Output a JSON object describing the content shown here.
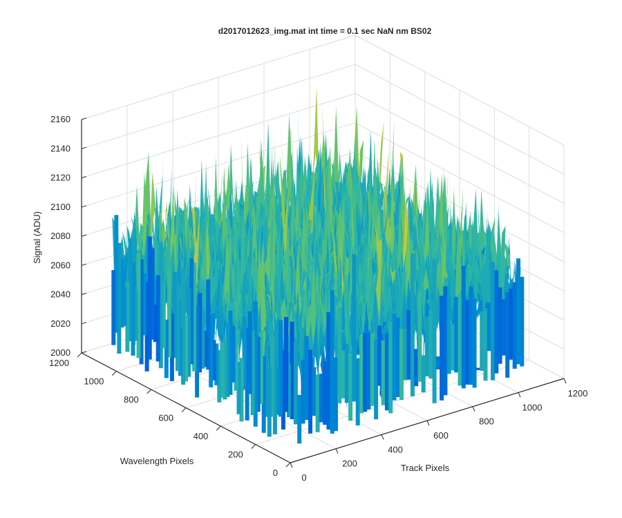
{
  "chart_data": {
    "type": "surface",
    "title": "d2017012623_img.mat int time = 0.1 sec  NaN nm BS02",
    "xlabel": "Track Pixels",
    "ylabel": "Wavelength Pixels",
    "zlabel": "Signal (ADU)",
    "xlim": [
      0,
      1200
    ],
    "ylim": [
      0,
      1200
    ],
    "zlim": [
      2000,
      2160
    ],
    "xticks": [
      "0",
      "200",
      "400",
      "600",
      "800",
      "1000",
      "1200"
    ],
    "yticks": [
      "0",
      "200",
      "400",
      "600",
      "800",
      "1000",
      "1200"
    ],
    "zticks": [
      "2000",
      "2020",
      "2040",
      "2060",
      "2080",
      "2100",
      "2120",
      "2140",
      "2160"
    ],
    "data_extent": {
      "x": [
        0,
        1024
      ],
      "y": [
        0,
        1024
      ]
    },
    "signal_range": [
      2010,
      2150
    ],
    "typical_signal": 2075,
    "grid": true,
    "colormap": "parula",
    "colors": {
      "low": "#0072bd",
      "mid": "#35b779",
      "high": "#f0c030"
    }
  }
}
